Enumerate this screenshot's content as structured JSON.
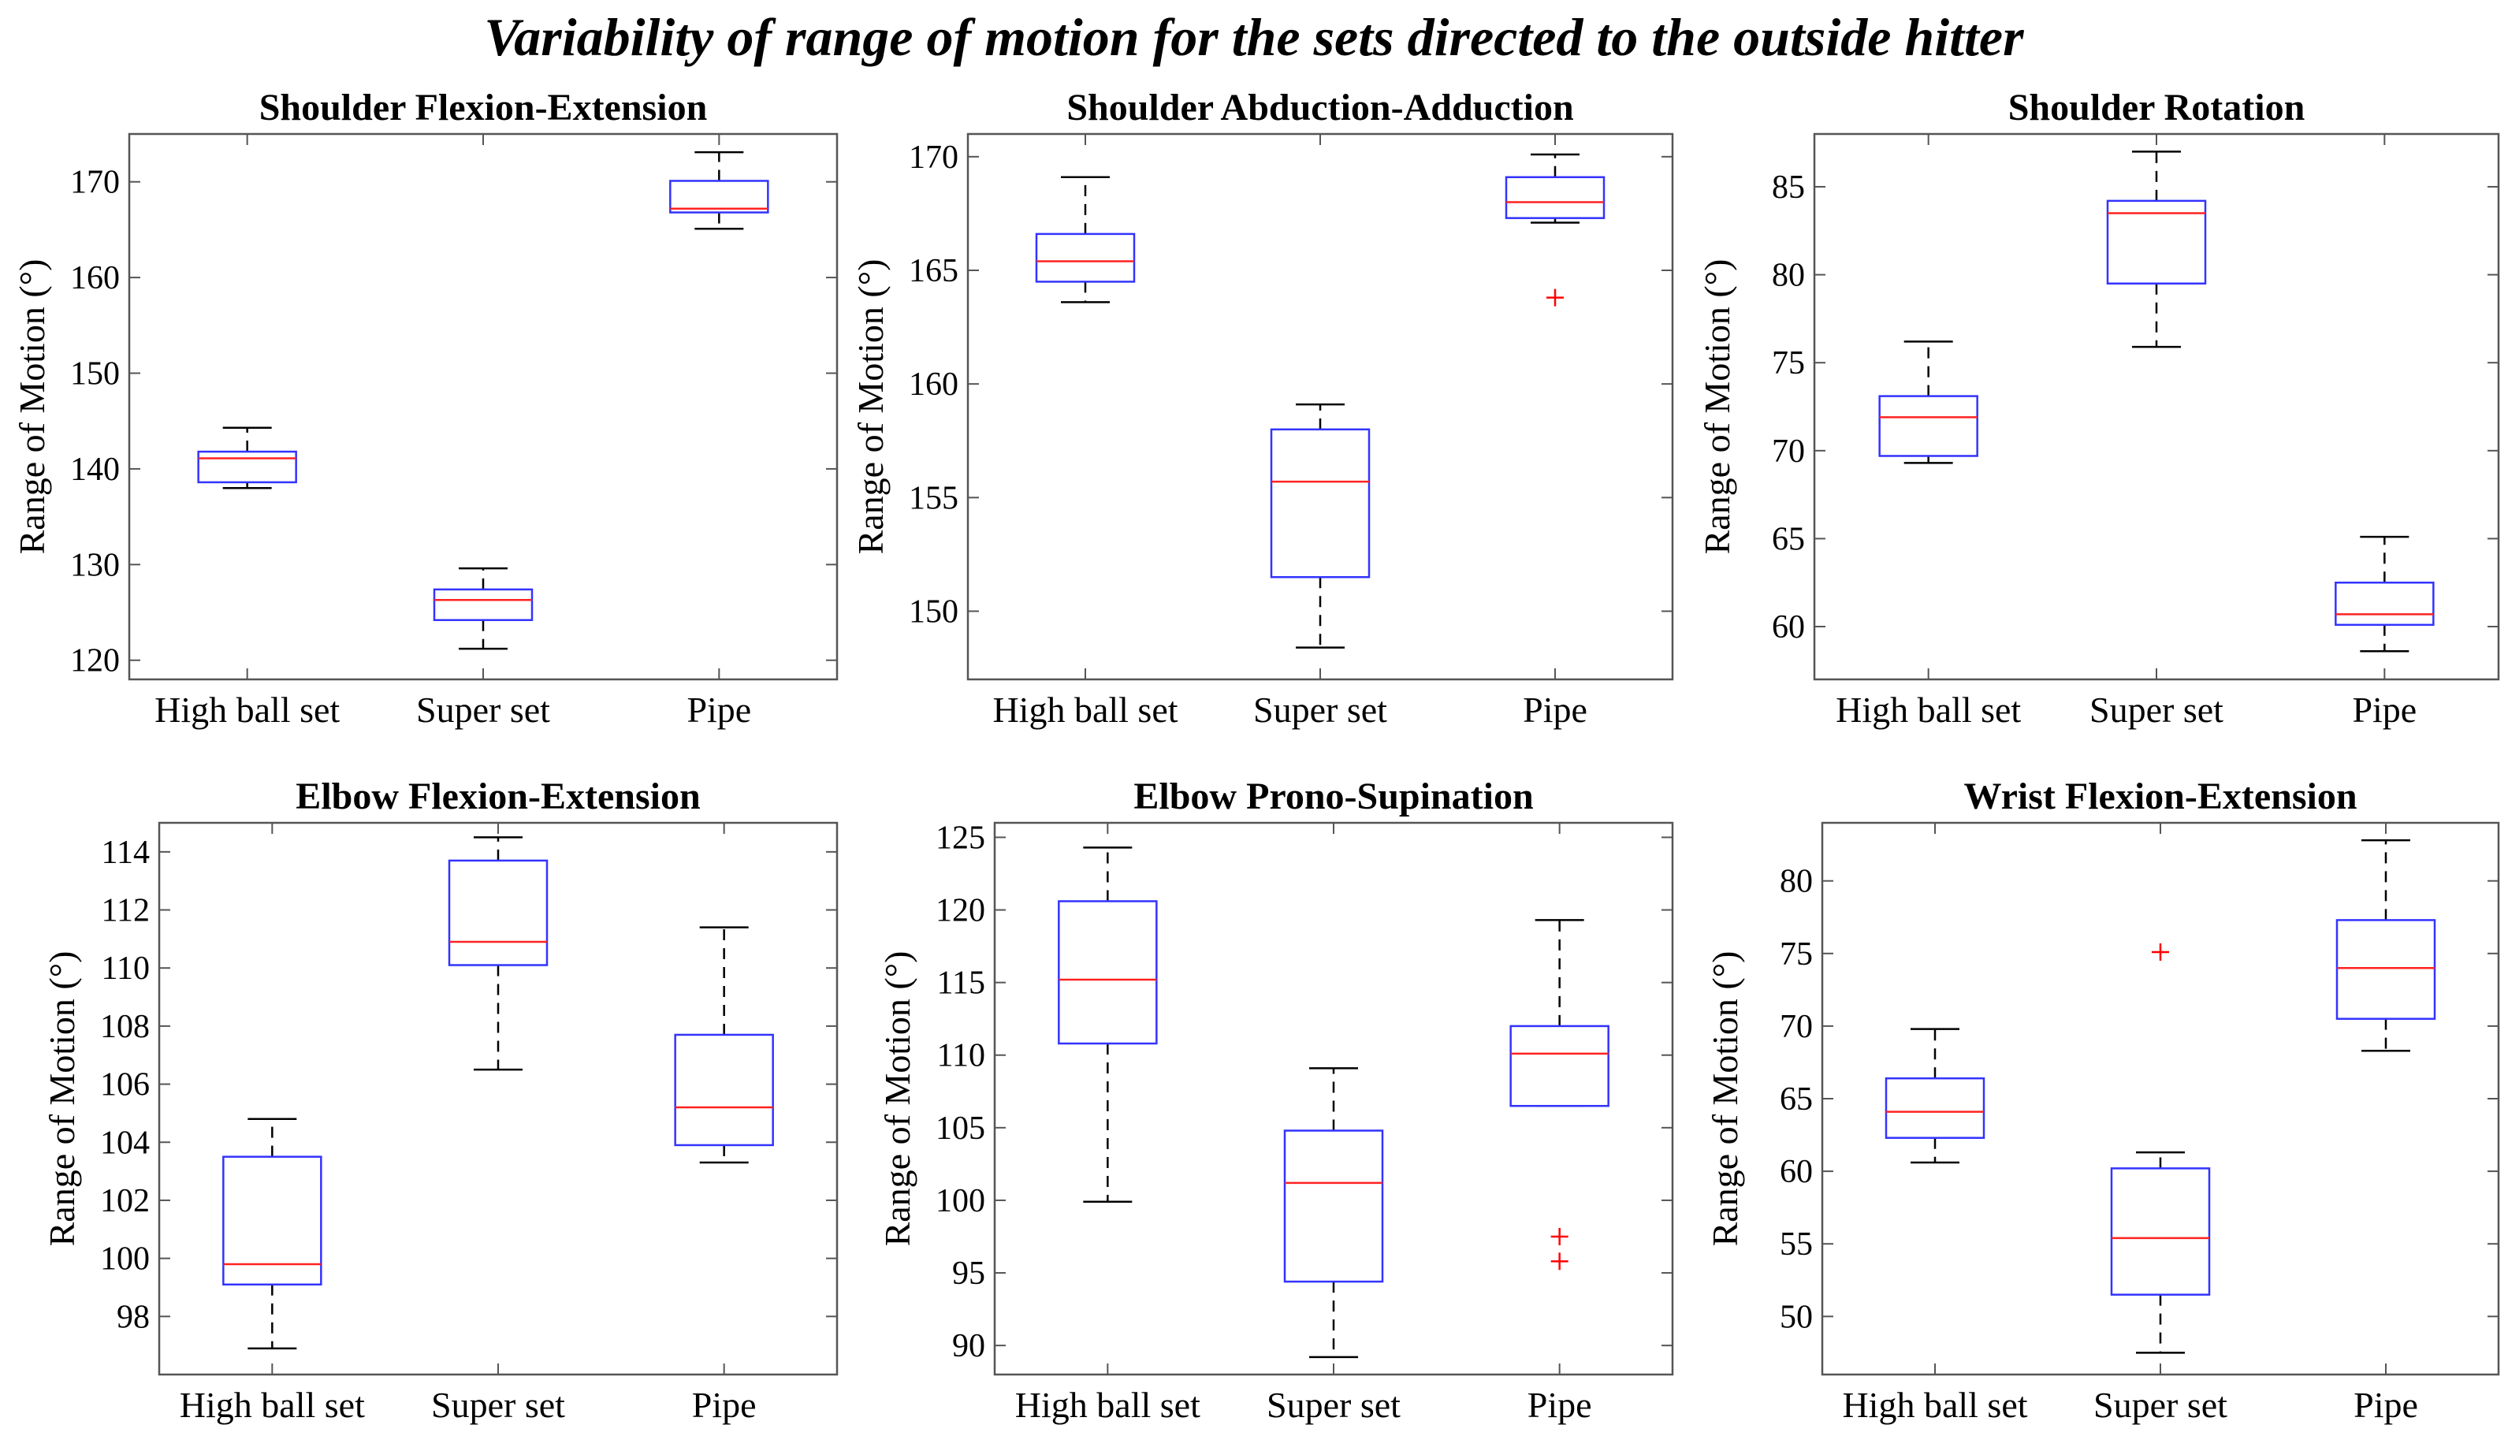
{
  "title": "Variability of range of motion for the sets directed to the outside hitter",
  "colors": {
    "box": "#3333ff",
    "median": "#ff2222",
    "whisker": "#000000",
    "outlier": "#ff0000",
    "axis": "#555555"
  },
  "chart_data": [
    {
      "type": "boxplot",
      "title": "Shoulder Flexion-Extension",
      "ylabel": "Range of Motion (°)",
      "categories": [
        "High ball set",
        "Super set",
        "Pipe"
      ],
      "ylim": [
        118,
        175
      ],
      "yticks": [
        120,
        130,
        140,
        150,
        160,
        170
      ],
      "boxes": [
        {
          "category": "High ball set",
          "whisker_low": 138,
          "q1": 138.6,
          "median": 141.1,
          "q3": 141.8,
          "whisker_high": 144.3,
          "outliers": []
        },
        {
          "category": "Super set",
          "whisker_low": 121.2,
          "q1": 124.2,
          "median": 126.3,
          "q3": 127.4,
          "whisker_high": 129.6,
          "outliers": []
        },
        {
          "category": "Pipe",
          "whisker_low": 165.1,
          "q1": 166.8,
          "median": 167.2,
          "q3": 170.1,
          "whisker_high": 173.1,
          "outliers": []
        }
      ]
    },
    {
      "type": "boxplot",
      "title": "Shoulder Abduction-Adduction",
      "ylabel": "Range of Motion (°)",
      "categories": [
        "High ball set",
        "Super set",
        "Pipe"
      ],
      "ylim": [
        147,
        171
      ],
      "yticks": [
        150,
        155,
        160,
        165,
        170
      ],
      "boxes": [
        {
          "category": "High ball set",
          "whisker_low": 163.6,
          "q1": 164.5,
          "median": 165.4,
          "q3": 166.6,
          "whisker_high": 169.1,
          "outliers": []
        },
        {
          "category": "Super set",
          "whisker_low": 148.4,
          "q1": 151.5,
          "median": 155.7,
          "q3": 158.0,
          "whisker_high": 159.1,
          "outliers": []
        },
        {
          "category": "Pipe",
          "whisker_low": 167.1,
          "q1": 167.3,
          "median": 168.0,
          "q3": 169.1,
          "whisker_high": 170.1,
          "outliers": [
            163.8
          ]
        }
      ]
    },
    {
      "type": "boxplot",
      "title": "Shoulder Rotation",
      "ylabel": "Range of Motion (°)",
      "categories": [
        "High ball set",
        "Super set",
        "Pipe"
      ],
      "ylim": [
        57,
        88
      ],
      "yticks": [
        60,
        65,
        70,
        75,
        80,
        85
      ],
      "boxes": [
        {
          "category": "High ball set",
          "whisker_low": 69.3,
          "q1": 69.7,
          "median": 71.9,
          "q3": 73.1,
          "whisker_high": 76.2,
          "outliers": []
        },
        {
          "category": "Super set",
          "whisker_low": 75.9,
          "q1": 79.5,
          "median": 83.5,
          "q3": 84.2,
          "whisker_high": 87.0,
          "outliers": []
        },
        {
          "category": "Pipe",
          "whisker_low": 58.6,
          "q1": 60.1,
          "median": 60.7,
          "q3": 62.5,
          "whisker_high": 65.1,
          "outliers": []
        }
      ]
    },
    {
      "type": "boxplot",
      "title": "Elbow Flexion-Extension",
      "ylabel": "Range of Motion (°)",
      "categories": [
        "High ball set",
        "Super set",
        "Pipe"
      ],
      "ylim": [
        96,
        115
      ],
      "yticks": [
        98,
        100,
        102,
        104,
        106,
        108,
        110,
        112,
        114
      ],
      "boxes": [
        {
          "category": "High ball set",
          "whisker_low": 96.9,
          "q1": 99.1,
          "median": 99.8,
          "q3": 103.5,
          "whisker_high": 104.8,
          "outliers": []
        },
        {
          "category": "Super set",
          "whisker_low": 106.5,
          "q1": 110.1,
          "median": 110.9,
          "q3": 113.7,
          "whisker_high": 114.5,
          "outliers": []
        },
        {
          "category": "Pipe",
          "whisker_low": 103.3,
          "q1": 103.9,
          "median": 105.2,
          "q3": 107.7,
          "whisker_high": 111.4,
          "outliers": []
        }
      ]
    },
    {
      "type": "boxplot",
      "title": "Elbow Prono-Supination",
      "ylabel": "Range of Motion (°)",
      "categories": [
        "High ball set",
        "Super set",
        "Pipe"
      ],
      "ylim": [
        88,
        126
      ],
      "yticks": [
        90,
        95,
        100,
        105,
        110,
        115,
        120,
        125
      ],
      "boxes": [
        {
          "category": "High ball set",
          "whisker_low": 99.9,
          "q1": 110.8,
          "median": 115.2,
          "q3": 120.6,
          "whisker_high": 124.3,
          "outliers": []
        },
        {
          "category": "Super set",
          "whisker_low": 89.2,
          "q1": 94.4,
          "median": 101.2,
          "q3": 104.8,
          "whisker_high": 109.1,
          "outliers": []
        },
        {
          "category": "Pipe",
          "whisker_low": 106.5,
          "q1": 106.5,
          "median": 110.1,
          "q3": 112.0,
          "whisker_high": 119.3,
          "outliers": [
            97.5,
            95.8
          ]
        }
      ]
    },
    {
      "type": "boxplot",
      "title": "Wrist Flexion-Extension",
      "ylabel": "Range of Motion (°)",
      "categories": [
        "High ball set",
        "Super set",
        "Pipe"
      ],
      "ylim": [
        46,
        84
      ],
      "yticks": [
        50,
        55,
        60,
        65,
        70,
        75,
        80
      ],
      "boxes": [
        {
          "category": "High ball set",
          "whisker_low": 60.6,
          "q1": 62.3,
          "median": 64.1,
          "q3": 66.4,
          "whisker_high": 69.8,
          "outliers": []
        },
        {
          "category": "Super set",
          "whisker_low": 47.5,
          "q1": 51.5,
          "median": 55.4,
          "q3": 60.2,
          "whisker_high": 61.3,
          "outliers": [
            75.1
          ]
        },
        {
          "category": "Pipe",
          "whisker_low": 68.3,
          "q1": 70.5,
          "median": 74.0,
          "q3": 77.3,
          "whisker_high": 82.8,
          "outliers": []
        }
      ]
    }
  ]
}
